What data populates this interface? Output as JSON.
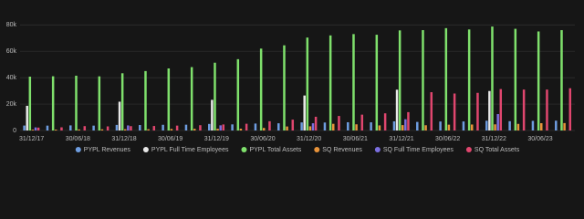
{
  "chart_data": {
    "type": "bar",
    "categories": [
      "31/12/17",
      null,
      "30/06/18",
      null,
      "31/12/18",
      null,
      "30/06/19",
      null,
      "31/12/19",
      null,
      "30/06/20",
      null,
      "31/12/20",
      null,
      "30/06/21",
      null,
      "31/12/21",
      null,
      "30/06/22",
      null,
      "31/12/22",
      null,
      "30/06/23",
      null
    ],
    "series": [
      {
        "name": "PYPL Revenues",
        "color": "#6e9de0",
        "values": [
          3744,
          3685,
          3857,
          3683,
          4226,
          4128,
          4308,
          4378,
          4961,
          4618,
          5259,
          5458,
          6116,
          6033,
          6238,
          6182,
          6918,
          6483,
          6806,
          6846,
          7383,
          7040,
          7287,
          7418
        ]
      },
      {
        "name": "PYPL Full Time Employees",
        "color": "#e8e8e8",
        "values": [
          18700,
          null,
          null,
          null,
          21800,
          null,
          null,
          null,
          23200,
          null,
          null,
          null,
          26500,
          null,
          null,
          null,
          30900,
          null,
          null,
          null,
          29900,
          null,
          null,
          null
        ]
      },
      {
        "name": "PYPL Total Assets",
        "color": "#7fe06c",
        "values": [
          40774,
          41066,
          41490,
          41000,
          43332,
          45000,
          46997,
          48000,
          51333,
          54000,
          62000,
          64500,
          70379,
          72000,
          73000,
          72500,
          75803,
          76000,
          77500,
          76500,
          78718,
          77000,
          75000,
          76000
        ]
      },
      {
        "name": "SQ Revenues",
        "color": "#e8933a",
        "values": [
          616,
          669,
          815,
          882,
          958,
          959,
          1174,
          1269,
          1310,
          1381,
          1924,
          3035,
          3159,
          5057,
          4681,
          3845,
          4079,
          3961,
          4404,
          4517,
          4652,
          4990,
          5535,
          5617
        ]
      },
      {
        "name": "SQ Full Time Employees",
        "color": "#7b6fe0",
        "values": [
          2338,
          null,
          null,
          null,
          3835,
          null,
          null,
          null,
          3900,
          null,
          null,
          null,
          5477,
          null,
          null,
          null,
          8521,
          null,
          null,
          null,
          12428,
          null,
          null,
          null
        ]
      },
      {
        "name": "SQ Total Assets",
        "color": "#e0466e",
        "values": [
          2187,
          2400,
          3300,
          3100,
          3281,
          3400,
          3700,
          4000,
          4551,
          5100,
          7000,
          8200,
          10400,
          11000,
          12000,
          13000,
          13900,
          29000,
          28000,
          28500,
          31364,
          31000,
          31000,
          32000
        ]
      }
    ],
    "ylim": [
      0,
      85000
    ],
    "yticks": [
      0,
      {
        "value": 20000,
        "label": "20k"
      },
      {
        "value": 40000,
        "label": "40k"
      },
      {
        "value": 60000,
        "label": "60k"
      },
      {
        "value": 80000,
        "label": "80k"
      }
    ],
    "grid": true,
    "legend": "bottom"
  }
}
